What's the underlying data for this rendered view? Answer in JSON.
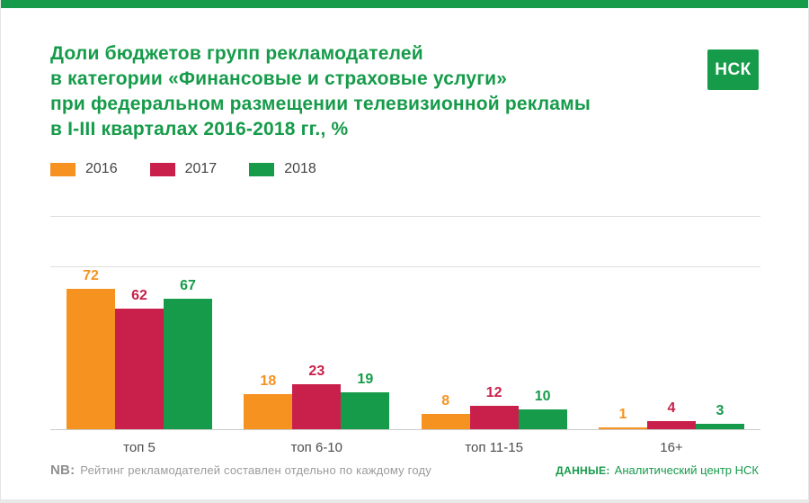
{
  "page": {
    "title": "Доли бюджетов групп рекламодателей\nв категории «Финансовые и страховые услуги»\nпри федеральном размещении телевизионной рекламы\nв I-III кварталах 2016-2018 гг., %",
    "logo_text": "НСК"
  },
  "chart_data": {
    "type": "bar",
    "title": "Доли бюджетов групп рекламодателей в категории «Финансовые и страховые услуги» при федеральном размещении телевизионной рекламы в I-III кварталах 2016-2018 гг., %",
    "categories": [
      "топ 5",
      "топ 6-10",
      "топ 11-15",
      "16+"
    ],
    "series": [
      {
        "name": "2016",
        "color": "#f6921f",
        "values": [
          72,
          18,
          8,
          1
        ]
      },
      {
        "name": "2017",
        "color": "#c8204a",
        "values": [
          62,
          23,
          12,
          4
        ]
      },
      {
        "name": "2018",
        "color": "#169b4a",
        "values": [
          67,
          19,
          10,
          3
        ]
      }
    ],
    "ylabel": "%",
    "ylim": [
      0,
      110
    ],
    "grid": true,
    "legend_position": "top-left",
    "value_labels": true
  },
  "footer": {
    "nb_label": "NB:",
    "nb_text": "Рейтинг рекламодателей составлен отдельно по каждому году",
    "source_label": "ДАННЫЕ:",
    "source_text": "Аналитический центр НСК"
  },
  "colors": {
    "accent_green": "#169b4a",
    "orange": "#f6921f",
    "crimson": "#c8204a",
    "grid": "#dddddd",
    "footer_gray": "#9b9b9b"
  }
}
